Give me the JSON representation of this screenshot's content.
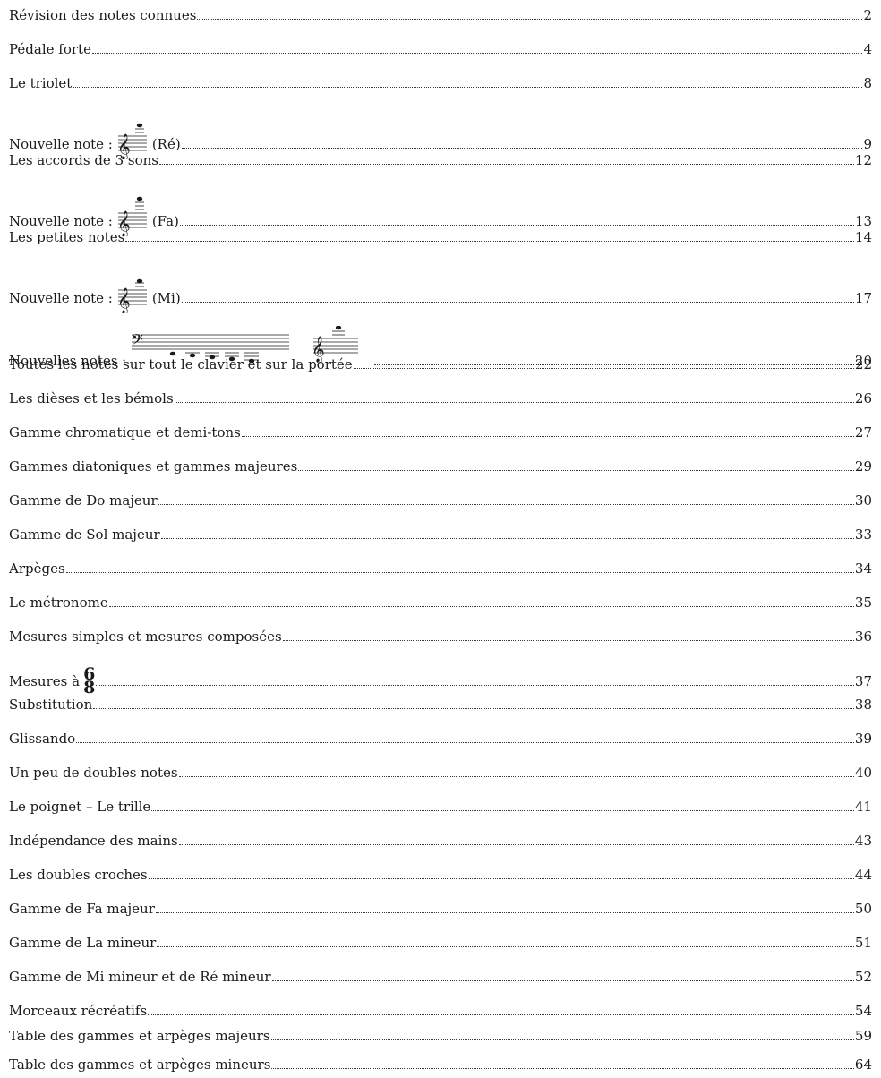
{
  "toc": {
    "entries": [
      {
        "title": "Révision des notes connues",
        "page": "2"
      },
      {
        "title": "Pédale forte",
        "page": "4"
      },
      {
        "title": "Le triolet",
        "page": "8"
      },
      {
        "title": "Nouvelle note :",
        "suffix": "(Ré)",
        "page": "9",
        "staff_icon": "treble-staff-icon"
      },
      {
        "title": "Les accords de 3 sons",
        "page": "12"
      },
      {
        "title": "Nouvelle note :",
        "suffix": "(Fa)",
        "page": "13",
        "staff_icon": "treble-staff-icon"
      },
      {
        "title": "Les petites notes",
        "page": "14"
      },
      {
        "title": "Nouvelle note :",
        "suffix": "(Mi)",
        "page": "17",
        "staff_icon": "treble-staff-icon"
      },
      {
        "title": "Nouvelles notes :",
        "page": "20",
        "staff_icon": "bass-and-treble-staff-icon"
      },
      {
        "title": "Toutes les notes sur tout le clavier et sur la portée",
        "page": "22"
      },
      {
        "title": "Les dièses et les bémols",
        "page": "26"
      },
      {
        "title": "Gamme chromatique et demi-tons",
        "page": "27"
      },
      {
        "title": "Gammes diatoniques et gammes majeures",
        "page": "29"
      },
      {
        "title": "Gamme de Do majeur",
        "page": "30"
      },
      {
        "title": "Gamme de Sol majeur",
        "page": "33"
      },
      {
        "title": "Arpèges",
        "page": "34"
      },
      {
        "title": "Le métronome",
        "page": "35"
      },
      {
        "title": "Mesures simples et mesures composées",
        "page": "36"
      },
      {
        "title": "Mesures à",
        "time_sig": {
          "top": "6",
          "bottom": "8"
        },
        "page": "37"
      },
      {
        "title": "Substitution",
        "page": "38"
      },
      {
        "title": "Glissando",
        "page": "39"
      },
      {
        "title": "Un peu de doubles notes",
        "page": "40"
      },
      {
        "title": "Le poignet – Le trille",
        "page": "41"
      },
      {
        "title": "Indépendance des mains",
        "page": "43"
      },
      {
        "title": "Les doubles croches",
        "page": "44"
      },
      {
        "title": "Gamme de Fa majeur",
        "page": "50"
      },
      {
        "title": "Gamme de La mineur",
        "page": "51"
      },
      {
        "title": "Gamme de Mi mineur et de Ré mineur",
        "page": "52"
      },
      {
        "title": "Morceaux récréatifs",
        "page": "54"
      },
      {
        "title": "Table des gammes et arpèges majeurs",
        "page": "59"
      },
      {
        "title": "Table des gammes et arpèges mineurs",
        "page": "64"
      }
    ]
  }
}
